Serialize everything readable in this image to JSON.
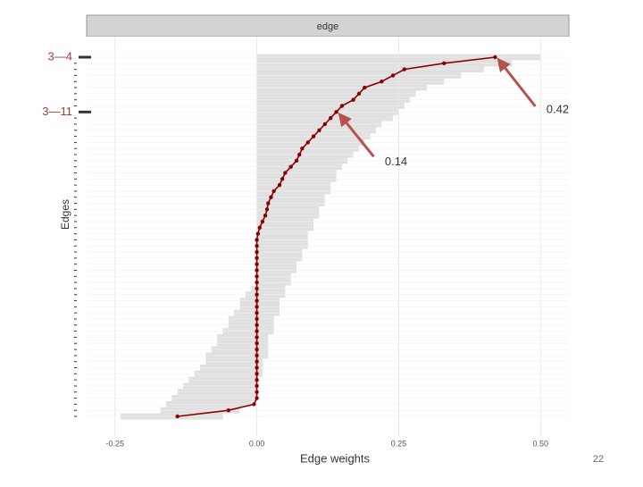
{
  "chart_data": {
    "type": "line",
    "strip": "edge",
    "xlabel": "Edge weights",
    "ylabel": "Edges",
    "categories": [
      "3—4",
      null,
      null,
      null,
      null,
      null,
      null,
      null,
      null,
      "3—11",
      null,
      null,
      null,
      null,
      null,
      null,
      null,
      null,
      null,
      null,
      null,
      null,
      null,
      null,
      null,
      null,
      null,
      null,
      null,
      null,
      null,
      null,
      null,
      null,
      null,
      null,
      null,
      null,
      null,
      null,
      null,
      null,
      null,
      null,
      null,
      null,
      null,
      null,
      null,
      null,
      null,
      null,
      null,
      null,
      null,
      null,
      null,
      null,
      null,
      null
    ],
    "values": [
      0.42,
      0.33,
      0.26,
      0.24,
      0.22,
      0.19,
      0.18,
      0.17,
      0.15,
      0.14,
      0.13,
      0.12,
      0.11,
      0.1,
      0.09,
      0.08,
      0.075,
      0.07,
      0.06,
      0.05,
      0.045,
      0.04,
      0.03,
      0.025,
      0.02,
      0.018,
      0.015,
      0.01,
      0.005,
      0.002,
      0,
      0,
      0,
      0,
      0,
      0,
      0,
      0,
      0,
      0,
      0,
      0,
      0,
      0,
      0,
      0,
      0,
      0,
      0,
      0,
      0,
      0,
      0,
      0,
      0,
      0,
      0,
      -0.005,
      -0.05,
      -0.14
    ],
    "color": "#8b0000",
    "interval": {
      "color": "#e0e0e0",
      "lower": [
        0,
        0,
        0,
        0,
        0,
        0,
        0,
        0,
        0,
        0,
        0,
        0,
        0,
        0,
        0,
        0,
        0,
        0,
        0,
        0,
        0,
        0,
        0,
        0,
        0,
        0,
        0,
        0,
        0,
        0,
        0,
        0,
        0,
        0,
        0,
        0,
        0,
        0,
        -0.01,
        -0.02,
        -0.03,
        -0.03,
        -0.04,
        -0.05,
        -0.05,
        -0.06,
        -0.07,
        -0.07,
        -0.08,
        -0.09,
        -0.09,
        -0.1,
        -0.11,
        -0.12,
        -0.13,
        -0.14,
        -0.15,
        -0.16,
        -0.17,
        -0.24
      ],
      "upper": [
        0.5,
        0.45,
        0.4,
        0.36,
        0.33,
        0.3,
        0.28,
        0.27,
        0.26,
        0.25,
        0.24,
        0.22,
        0.21,
        0.2,
        0.19,
        0.18,
        0.17,
        0.16,
        0.15,
        0.14,
        0.14,
        0.13,
        0.13,
        0.12,
        0.12,
        0.11,
        0.11,
        0.1,
        0.1,
        0.09,
        0.09,
        0.09,
        0.08,
        0.08,
        0.07,
        0.07,
        0.06,
        0.06,
        0.05,
        0.05,
        0.04,
        0.04,
        0.04,
        0.03,
        0.03,
        0.03,
        0.02,
        0.02,
        0.02,
        0.02,
        0.01,
        0.01,
        0.01,
        0,
        0,
        0,
        0,
        -0.01,
        -0.03,
        -0.06
      ]
    },
    "xlim": [
      -0.3,
      0.55
    ],
    "xticks": [
      {
        "value": -0.25,
        "label": "-0.25"
      },
      {
        "value": 0,
        "label": "0.00"
      },
      {
        "value": 0.25,
        "label": "0.25"
      },
      {
        "value": 0.5,
        "label": "0.50"
      }
    ],
    "annotations": [
      {
        "label": "0.42",
        "category": "3—4"
      },
      {
        "label": "0.14",
        "category": "3—11"
      }
    ]
  },
  "page_number": "22"
}
